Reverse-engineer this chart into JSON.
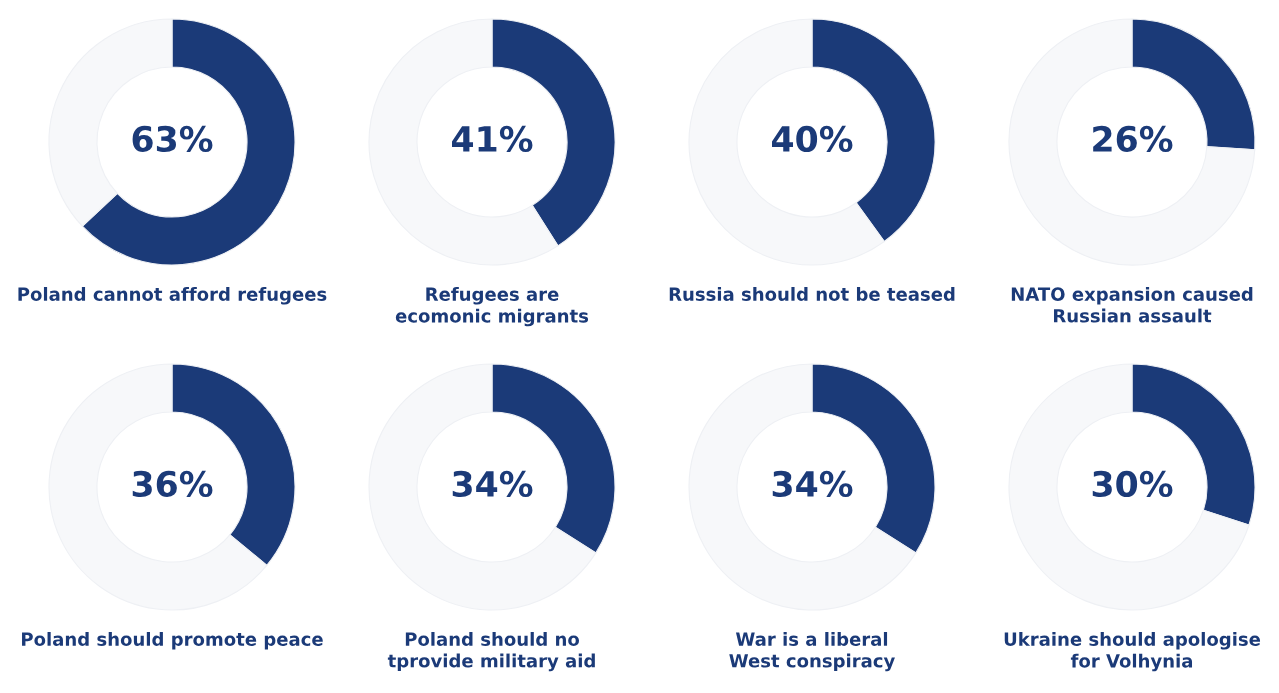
{
  "chart_data": [
    {
      "type": "donut",
      "title": "Poland cannot afford refugees",
      "categories": [
        null,
        null
      ],
      "values": [
        63,
        37
      ],
      "colors": [
        "#1b3a78",
        "#f7f8fa"
      ],
      "value_labels": [
        "63%",
        null
      ]
    },
    {
      "type": "donut",
      "title": "Refugees are\necomonic migrants",
      "categories": [
        null,
        null
      ],
      "values": [
        41,
        59
      ],
      "colors": [
        "#1b3a78",
        "#f7f8fa"
      ],
      "value_labels": [
        "41%",
        null
      ]
    },
    {
      "type": "donut",
      "title": "Russia should not be teased",
      "categories": [
        null,
        null
      ],
      "values": [
        40,
        60
      ],
      "colors": [
        "#1b3a78",
        "#f7f8fa"
      ],
      "value_labels": [
        "40%",
        null
      ]
    },
    {
      "type": "donut",
      "title": "NATO expansion caused\nRussian assault",
      "categories": [
        null,
        null
      ],
      "values": [
        26,
        74
      ],
      "colors": [
        "#1b3a78",
        "#f7f8fa"
      ],
      "value_labels": [
        "26%",
        null
      ]
    },
    {
      "type": "donut",
      "title": "Poland should promote peace",
      "categories": [
        null,
        null
      ],
      "values": [
        36,
        64
      ],
      "colors": [
        "#1b3a78",
        "#f7f8fa"
      ],
      "value_labels": [
        "36%",
        null
      ]
    },
    {
      "type": "donut",
      "title": "Poland should no\ntprovide military aid",
      "categories": [
        null,
        null
      ],
      "values": [
        34,
        66
      ],
      "colors": [
        "#1b3a78",
        "#f7f8fa"
      ],
      "value_labels": [
        "34%",
        null
      ]
    },
    {
      "type": "donut",
      "title": "War is a liberal\nWest conspiracy",
      "categories": [
        null,
        null
      ],
      "values": [
        34,
        66
      ],
      "colors": [
        "#1b3a78",
        "#f7f8fa"
      ],
      "value_labels": [
        "34%",
        null
      ]
    },
    {
      "type": "donut",
      "title": "Ukraine should apologise\nfor Volhynia",
      "categories": [
        null,
        null
      ],
      "values": [
        30,
        70
      ],
      "colors": [
        "#1b3a78",
        "#f7f8fa"
      ],
      "value_labels": [
        "30%",
        null
      ]
    }
  ]
}
